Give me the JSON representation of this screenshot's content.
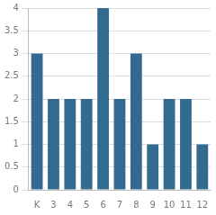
{
  "chart_data": {
    "type": "bar",
    "categories": [
      "K",
      "3",
      "4",
      "5",
      "6",
      "7",
      "8",
      "9",
      "10",
      "11",
      "12"
    ],
    "values": [
      3,
      2,
      2,
      2,
      4,
      2,
      3,
      1,
      2,
      2,
      1
    ],
    "color": "#336a90",
    "ylim": [
      0,
      4
    ],
    "yticks": [
      0,
      0.5,
      1,
      1.5,
      2,
      2.5,
      3,
      3.5,
      4
    ],
    "grid": true
  }
}
